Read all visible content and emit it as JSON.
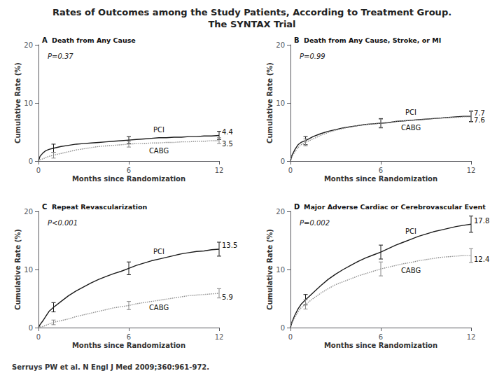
{
  "title": "Rates of Outcomes among the Study Patients, According to Treatment Group.",
  "subtitle": "The SYNTAX Trial",
  "annotations": [
    "Serruys PW et al. N Engl J Med 2009;360:961-972."
  ],
  "chart_data": [
    {
      "type": "line",
      "panel_label": "A",
      "title": "Death from Any Cause",
      "annotations": [
        "P=0.37"
      ],
      "xlabel": "Months since Randomization",
      "ylabel": "Cumulative Rate (%)",
      "xlim": [
        0,
        12
      ],
      "xticks": [
        0,
        6,
        12
      ],
      "ylim": [
        0,
        20
      ],
      "yticks": [
        0,
        10,
        20
      ],
      "grid": false,
      "series": [
        {
          "name": "PCI",
          "color": "#1a1a1a",
          "line_style": "solid",
          "x": [
            0,
            0.1,
            0.3,
            0.5,
            0.7,
            1.0,
            1.5,
            2.0,
            2.5,
            3.0,
            3.5,
            4.0,
            4.5,
            5.0,
            5.5,
            6.0,
            6.5,
            7.0,
            7.5,
            8.0,
            8.5,
            9.0,
            9.5,
            10.0,
            10.5,
            11.0,
            11.5,
            12.0
          ],
          "values": [
            0,
            0.8,
            1.4,
            1.8,
            2.0,
            2.2,
            2.5,
            2.7,
            2.9,
            3.0,
            3.1,
            3.2,
            3.3,
            3.4,
            3.5,
            3.6,
            3.7,
            3.8,
            3.9,
            4.0,
            4.0,
            4.1,
            4.1,
            4.2,
            4.2,
            4.3,
            4.3,
            4.4
          ],
          "end_label": "4.4",
          "error_bars": {
            "x": [
              1.0,
              6.0,
              12.0
            ],
            "y": [
              2.2,
              3.6,
              4.4
            ],
            "minus": [
              0.7,
              0.6,
              0.7
            ],
            "plus": [
              0.7,
              0.6,
              0.7
            ]
          }
        },
        {
          "name": "CABG",
          "color": "#888888",
          "line_style": "dotted",
          "x": [
            0,
            0.1,
            0.3,
            0.5,
            0.7,
            1.0,
            1.5,
            2.0,
            2.5,
            3.0,
            3.5,
            4.0,
            4.5,
            5.0,
            5.5,
            6.0,
            6.5,
            7.0,
            7.5,
            8.0,
            8.5,
            9.0,
            9.5,
            10.0,
            10.5,
            11.0,
            11.5,
            12.0
          ],
          "values": [
            0,
            0.2,
            0.4,
            0.6,
            0.8,
            1.0,
            1.3,
            1.6,
            1.9,
            2.1,
            2.3,
            2.5,
            2.6,
            2.7,
            2.8,
            2.9,
            3.0,
            3.0,
            3.1,
            3.1,
            3.2,
            3.2,
            3.3,
            3.3,
            3.4,
            3.4,
            3.5,
            3.5
          ],
          "end_label": "3.5",
          "error_bars": {
            "x": [
              1.0,
              6.0,
              12.0
            ],
            "y": [
              1.0,
              2.9,
              3.5
            ],
            "minus": [
              0.5,
              0.5,
              0.5
            ],
            "plus": [
              0.5,
              0.5,
              0.5
            ]
          }
        }
      ]
    },
    {
      "type": "line",
      "panel_label": "B",
      "title": "Death from Any Cause, Stroke, or MI",
      "annotations": [
        "P=0.99"
      ],
      "xlabel": "Months since Randomization",
      "ylabel": "Cumulative Rate (%)",
      "xlim": [
        0,
        12
      ],
      "xticks": [
        0,
        6,
        12
      ],
      "ylim": [
        0,
        20
      ],
      "yticks": [
        0,
        10,
        20
      ],
      "grid": false,
      "series": [
        {
          "name": "PCI",
          "color": "#1a1a1a",
          "line_style": "solid",
          "x": [
            0,
            0.1,
            0.3,
            0.5,
            0.7,
            1.0,
            1.5,
            2.0,
            2.5,
            3.0,
            3.5,
            4.0,
            4.5,
            5.0,
            5.5,
            6.0,
            6.5,
            7.0,
            7.5,
            8.0,
            8.5,
            9.0,
            9.5,
            10.0,
            10.5,
            11.0,
            11.5,
            12.0
          ],
          "values": [
            0,
            1.0,
            2.0,
            2.8,
            3.2,
            3.5,
            4.2,
            4.7,
            5.1,
            5.4,
            5.7,
            5.9,
            6.1,
            6.3,
            6.4,
            6.5,
            6.6,
            6.8,
            6.9,
            7.0,
            7.1,
            7.2,
            7.3,
            7.4,
            7.5,
            7.6,
            7.7,
            7.7
          ],
          "end_label": "7.7",
          "error_bars": {
            "x": [
              1.0,
              6.0,
              12.0
            ],
            "y": [
              3.5,
              6.5,
              7.7
            ],
            "minus": [
              0.7,
              0.8,
              0.9
            ],
            "plus": [
              0.7,
              0.8,
              0.9
            ]
          }
        },
        {
          "name": "CABG",
          "color": "#888888",
          "line_style": "dotted",
          "x": [
            0,
            0.1,
            0.3,
            0.5,
            0.7,
            1.0,
            1.5,
            2.0,
            2.5,
            3.0,
            3.5,
            4.0,
            4.5,
            5.0,
            5.5,
            6.0,
            6.5,
            7.0,
            7.5,
            8.0,
            8.5,
            9.0,
            9.5,
            10.0,
            10.5,
            11.0,
            11.5,
            12.0
          ],
          "values": [
            0,
            0.8,
            1.6,
            2.3,
            2.8,
            3.2,
            3.8,
            4.4,
            4.9,
            5.3,
            5.6,
            5.9,
            6.1,
            6.3,
            6.4,
            6.5,
            6.6,
            6.8,
            6.9,
            7.0,
            7.1,
            7.2,
            7.3,
            7.4,
            7.5,
            7.5,
            7.6,
            7.6
          ],
          "end_label": "7.6",
          "error_bars": {
            "x": [
              1.0,
              6.0,
              12.0
            ],
            "y": [
              3.2,
              6.5,
              7.6
            ],
            "minus": [
              0.6,
              0.7,
              0.9
            ],
            "plus": [
              0.6,
              0.7,
              0.9
            ]
          }
        }
      ]
    },
    {
      "type": "line",
      "panel_label": "C",
      "title": "Repeat Revascularization",
      "annotations": [
        "P<0.001"
      ],
      "xlabel": "Months since Randomization",
      "ylabel": "Cumulative Rate (%)",
      "xlim": [
        0,
        12
      ],
      "xticks": [
        0,
        6,
        12
      ],
      "ylim": [
        0,
        20
      ],
      "yticks": [
        0,
        10,
        20
      ],
      "grid": false,
      "series": [
        {
          "name": "PCI",
          "color": "#1a1a1a",
          "line_style": "solid",
          "x": [
            0,
            0.1,
            0.3,
            0.5,
            0.7,
            1.0,
            1.5,
            2.0,
            2.5,
            3.0,
            3.5,
            4.0,
            4.5,
            5.0,
            5.5,
            6.0,
            6.5,
            7.0,
            7.5,
            8.0,
            8.5,
            9.0,
            9.5,
            10.0,
            10.5,
            11.0,
            11.5,
            12.0
          ],
          "values": [
            0,
            0.5,
            1.2,
            2.0,
            2.8,
            3.5,
            4.5,
            5.5,
            6.3,
            7.0,
            7.7,
            8.3,
            8.8,
            9.3,
            9.7,
            10.2,
            10.7,
            11.1,
            11.5,
            11.8,
            12.1,
            12.4,
            12.7,
            12.9,
            13.1,
            13.2,
            13.4,
            13.5
          ],
          "end_label": "13.5",
          "error_bars": {
            "x": [
              1.0,
              6.0,
              12.0
            ],
            "y": [
              3.5,
              10.2,
              13.5
            ],
            "minus": [
              0.8,
              1.1,
              1.2
            ],
            "plus": [
              0.8,
              1.1,
              1.2
            ]
          }
        },
        {
          "name": "CABG",
          "color": "#888888",
          "line_style": "dotted",
          "x": [
            0,
            0.1,
            0.3,
            0.5,
            0.7,
            1.0,
            1.5,
            2.0,
            2.5,
            3.0,
            3.5,
            4.0,
            4.5,
            5.0,
            5.5,
            6.0,
            6.5,
            7.0,
            7.5,
            8.0,
            8.5,
            9.0,
            9.5,
            10.0,
            10.5,
            11.0,
            11.5,
            12.0
          ],
          "values": [
            0,
            0.1,
            0.2,
            0.4,
            0.6,
            0.9,
            1.2,
            1.5,
            1.9,
            2.2,
            2.5,
            2.8,
            3.1,
            3.4,
            3.6,
            3.8,
            4.1,
            4.3,
            4.5,
            4.7,
            4.9,
            5.1,
            5.3,
            5.5,
            5.6,
            5.7,
            5.8,
            5.9
          ],
          "end_label": "5.9",
          "error_bars": {
            "x": [
              1.0,
              6.0,
              12.0
            ],
            "y": [
              0.9,
              3.8,
              5.9
            ],
            "minus": [
              0.4,
              0.7,
              0.8
            ],
            "plus": [
              0.4,
              0.7,
              0.8
            ]
          }
        }
      ]
    },
    {
      "type": "line",
      "panel_label": "D",
      "title": "Major Adverse Cardiac or Cerebrovascular Event",
      "annotations": [
        "P=0.002"
      ],
      "xlabel": "Months since Randomization",
      "ylabel": "Cumulative Rate (%)",
      "xlim": [
        0,
        12
      ],
      "xticks": [
        0,
        6,
        12
      ],
      "ylim": [
        0,
        20
      ],
      "yticks": [
        0,
        10,
        20
      ],
      "grid": false,
      "series": [
        {
          "name": "PCI",
          "color": "#1a1a1a",
          "line_style": "solid",
          "x": [
            0,
            0.1,
            0.3,
            0.5,
            0.7,
            1.0,
            1.5,
            2.0,
            2.5,
            3.0,
            3.5,
            4.0,
            4.5,
            5.0,
            5.5,
            6.0,
            6.5,
            7.0,
            7.5,
            8.0,
            8.5,
            9.0,
            9.5,
            10.0,
            10.5,
            11.0,
            11.5,
            12.0
          ],
          "values": [
            0,
            1.0,
            2.2,
            3.2,
            4.0,
            4.8,
            6.0,
            7.2,
            8.3,
            9.2,
            10.0,
            10.7,
            11.4,
            12.0,
            12.5,
            13.0,
            13.6,
            14.2,
            14.7,
            15.2,
            15.7,
            16.1,
            16.5,
            16.8,
            17.1,
            17.4,
            17.6,
            17.8
          ],
          "end_label": "17.8",
          "error_bars": {
            "x": [
              1.0,
              6.0,
              12.0
            ],
            "y": [
              4.8,
              13.0,
              17.8
            ],
            "minus": [
              0.9,
              1.2,
              1.4
            ],
            "plus": [
              0.9,
              1.2,
              1.4
            ]
          }
        },
        {
          "name": "CABG",
          "color": "#888888",
          "line_style": "dotted",
          "x": [
            0,
            0.1,
            0.3,
            0.5,
            0.7,
            1.0,
            1.5,
            2.0,
            2.5,
            3.0,
            3.5,
            4.0,
            4.5,
            5.0,
            5.5,
            6.0,
            6.5,
            7.0,
            7.5,
            8.0,
            8.5,
            9.0,
            9.5,
            10.0,
            10.5,
            11.0,
            11.5,
            12.0
          ],
          "values": [
            0,
            0.8,
            1.8,
            2.7,
            3.4,
            4.0,
            5.0,
            5.9,
            6.7,
            7.4,
            7.9,
            8.4,
            8.9,
            9.3,
            9.7,
            10.1,
            10.4,
            10.7,
            11.0,
            11.2,
            11.5,
            11.7,
            11.9,
            12.1,
            12.2,
            12.3,
            12.4,
            12.4
          ],
          "end_label": "12.4",
          "error_bars": {
            "x": [
              1.0,
              6.0,
              12.0
            ],
            "y": [
              4.0,
              10.1,
              12.4
            ],
            "minus": [
              0.8,
              1.2,
              1.2
            ],
            "plus": [
              0.8,
              1.2,
              1.2
            ]
          }
        }
      ]
    }
  ]
}
